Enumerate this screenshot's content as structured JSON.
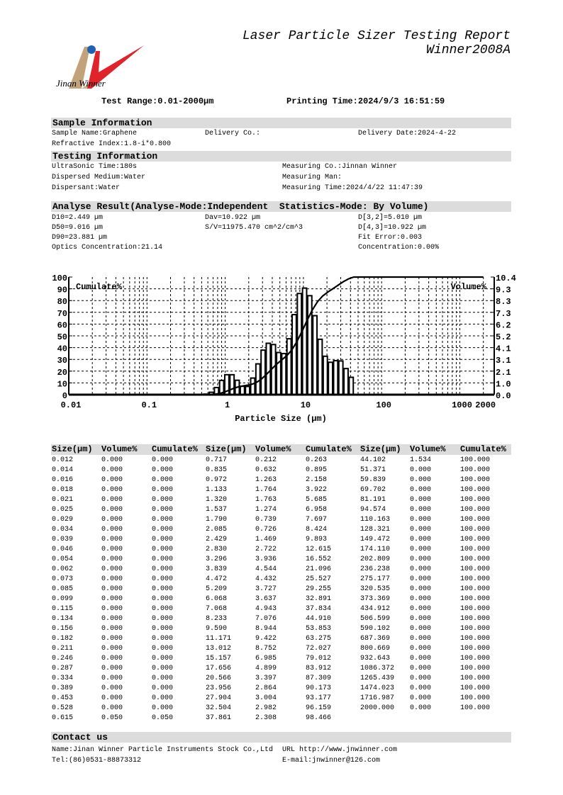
{
  "logo": {
    "caption": "Jinan Winner",
    "colors": {
      "tan": "#c2a27a",
      "red": "#e0222a",
      "blue": "#1f63b0"
    }
  },
  "header": {
    "title": "Laser Particle Sizer Testing Report",
    "model": "Winner2008A",
    "test_range": "Test Range:0.01-2000µm",
    "printing_time": "Printing Time:2024/9/3 16:51:59"
  },
  "sample": {
    "heading": "Sample Information",
    "name": "Sample Name:Graphene",
    "delivery_co": "Delivery Co.:",
    "delivery_date": "Delivery Date:2024-4-22",
    "refractive_index": "Refractive Index:1.8-i*0.800"
  },
  "testing": {
    "heading": "Testing Information",
    "ultrasonic": "UltraSonic Time:180s",
    "medium": "Dispersed Medium:Water",
    "dispersant": "Dispersant:Water",
    "measuring_co": "Measuring Co.:Jinnan Winner",
    "measuring_man": "Measuring Man:",
    "measuring_time": "Measuring Time:2024/4/22 11:47:39"
  },
  "analysis": {
    "heading": "Analyse Result(Analyse-Mode:Independent  Statistics-Mode: By Volume)",
    "d10": "D10=2.449 µm",
    "d50": "D50=9.016 µm",
    "d90": "D90=23.881 µm",
    "optics": "Optics Concentration:21.14",
    "dav": "Dav=10.922 µm",
    "sv": "S/V=11975.470 cm^2/cm^3",
    "d32": "D[3,2]=5.010 µm",
    "d43": "D[4,3]=10.922 µm",
    "fit_error": "Fit Error:0.003",
    "concentration": "Concentration:0.00%"
  },
  "chart_data": {
    "type": "bar",
    "xlabel": "Particle Size (µm)",
    "ylabel_left": "Cumulate%",
    "ylabel_right": "Volume%",
    "x_scale": "log",
    "xlim": [
      0.01,
      2000
    ],
    "x_ticks": [
      "0.01",
      "0.1",
      "1",
      "10",
      "100",
      "1000",
      "2000"
    ],
    "x_tick_values": [
      0.01,
      0.1,
      1,
      10,
      100,
      1000,
      2000
    ],
    "ylim_left": [
      0,
      100
    ],
    "ylim_right": [
      0,
      10.4
    ],
    "y_ticks_left": [
      "0",
      "10",
      "20",
      "30",
      "40",
      "50",
      "60",
      "70",
      "80",
      "90",
      "100"
    ],
    "y_ticks_right": [
      "0.0",
      "1.0",
      "2.1",
      "3.1",
      "4.1",
      "5.2",
      "6.2",
      "7.3",
      "8.3",
      "9.3",
      "10.4"
    ],
    "grid": true,
    "series": [
      {
        "name": "Volume%",
        "type": "bar",
        "axis": "right"
      },
      {
        "name": "Cumulate%",
        "type": "line",
        "axis": "left"
      }
    ]
  },
  "table": {
    "headers": [
      "Size(µm)",
      "Volume%",
      "Cumulate%"
    ],
    "groups": [
      [
        [
          "0.012",
          "0.000",
          "0.000"
        ],
        [
          "0.014",
          "0.000",
          "0.000"
        ],
        [
          "0.016",
          "0.000",
          "0.000"
        ],
        [
          "0.018",
          "0.000",
          "0.000"
        ],
        [
          "0.021",
          "0.000",
          "0.000"
        ],
        [
          "0.025",
          "0.000",
          "0.000"
        ],
        [
          "0.029",
          "0.000",
          "0.000"
        ],
        [
          "0.034",
          "0.000",
          "0.000"
        ],
        [
          "0.039",
          "0.000",
          "0.000"
        ],
        [
          "0.046",
          "0.000",
          "0.000"
        ],
        [
          "0.054",
          "0.000",
          "0.000"
        ],
        [
          "0.062",
          "0.000",
          "0.000"
        ],
        [
          "0.073",
          "0.000",
          "0.000"
        ],
        [
          "0.085",
          "0.000",
          "0.000"
        ],
        [
          "0.099",
          "0.000",
          "0.000"
        ],
        [
          "0.115",
          "0.000",
          "0.000"
        ],
        [
          "0.134",
          "0.000",
          "0.000"
        ],
        [
          "0.156",
          "0.000",
          "0.000"
        ],
        [
          "0.182",
          "0.000",
          "0.000"
        ],
        [
          "0.211",
          "0.000",
          "0.000"
        ],
        [
          "0.246",
          "0.000",
          "0.000"
        ],
        [
          "0.287",
          "0.000",
          "0.000"
        ],
        [
          "0.334",
          "0.000",
          "0.000"
        ],
        [
          "0.389",
          "0.000",
          "0.000"
        ],
        [
          "0.453",
          "0.000",
          "0.000"
        ],
        [
          "0.528",
          "0.000",
          "0.000"
        ],
        [
          "0.615",
          "0.050",
          "0.050"
        ]
      ],
      [
        [
          "0.717",
          "0.212",
          "0.263"
        ],
        [
          "0.835",
          "0.632",
          "0.895"
        ],
        [
          "0.972",
          "1.263",
          "2.158"
        ],
        [
          "1.133",
          "1.764",
          "3.922"
        ],
        [
          "1.320",
          "1.763",
          "5.685"
        ],
        [
          "1.537",
          "1.274",
          "6.958"
        ],
        [
          "1.790",
          "0.739",
          "7.697"
        ],
        [
          "2.085",
          "0.726",
          "8.424"
        ],
        [
          "2.429",
          "1.469",
          "9.893"
        ],
        [
          "2.830",
          "2.722",
          "12.615"
        ],
        [
          "3.296",
          "3.936",
          "16.552"
        ],
        [
          "3.839",
          "4.544",
          "21.096"
        ],
        [
          "4.472",
          "4.432",
          "25.527"
        ],
        [
          "5.209",
          "3.727",
          "29.255"
        ],
        [
          "6.068",
          "3.637",
          "32.891"
        ],
        [
          "7.068",
          "4.943",
          "37.834"
        ],
        [
          "8.233",
          "7.076",
          "44.910"
        ],
        [
          "9.590",
          "8.944",
          "53.853"
        ],
        [
          "11.171",
          "9.422",
          "63.275"
        ],
        [
          "13.012",
          "8.752",
          "72.027"
        ],
        [
          "15.157",
          "6.985",
          "79.012"
        ],
        [
          "17.656",
          "4.899",
          "83.912"
        ],
        [
          "20.566",
          "3.397",
          "87.309"
        ],
        [
          "23.956",
          "2.864",
          "90.173"
        ],
        [
          "27.904",
          "3.004",
          "93.177"
        ],
        [
          "32.504",
          "2.982",
          "96.159"
        ],
        [
          "37.861",
          "2.308",
          "98.466"
        ]
      ],
      [
        [
          "44.102",
          "1.534",
          "100.000"
        ],
        [
          "51.371",
          "0.000",
          "100.000"
        ],
        [
          "59.839",
          "0.000",
          "100.000"
        ],
        [
          "69.702",
          "0.000",
          "100.000"
        ],
        [
          "81.191",
          "0.000",
          "100.000"
        ],
        [
          "94.574",
          "0.000",
          "100.000"
        ],
        [
          "110.163",
          "0.000",
          "100.000"
        ],
        [
          "128.321",
          "0.000",
          "100.000"
        ],
        [
          "149.472",
          "0.000",
          "100.000"
        ],
        [
          "174.110",
          "0.000",
          "100.000"
        ],
        [
          "202.809",
          "0.000",
          "100.000"
        ],
        [
          "236.238",
          "0.000",
          "100.000"
        ],
        [
          "275.177",
          "0.000",
          "100.000"
        ],
        [
          "320.535",
          "0.000",
          "100.000"
        ],
        [
          "373.369",
          "0.000",
          "100.000"
        ],
        [
          "434.912",
          "0.000",
          "100.000"
        ],
        [
          "506.599",
          "0.000",
          "100.000"
        ],
        [
          "590.102",
          "0.000",
          "100.000"
        ],
        [
          "687.369",
          "0.000",
          "100.000"
        ],
        [
          "800.669",
          "0.000",
          "100.000"
        ],
        [
          "932.643",
          "0.000",
          "100.000"
        ],
        [
          "1086.372",
          "0.000",
          "100.000"
        ],
        [
          "1265.439",
          "0.000",
          "100.000"
        ],
        [
          "1474.023",
          "0.000",
          "100.000"
        ],
        [
          "1716.987",
          "0.000",
          "100.000"
        ],
        [
          "2000.000",
          "0.000",
          "100.000"
        ]
      ]
    ]
  },
  "contact": {
    "heading": "Contact us",
    "name": "Name:Jinan Winner Particle Instruments Stock Co.,Ltd",
    "tel": "Tel:(86)0531-88873312",
    "url": "URL http://www.jnwinner.com",
    "email": "E-mail:jnwinner@126.com"
  }
}
